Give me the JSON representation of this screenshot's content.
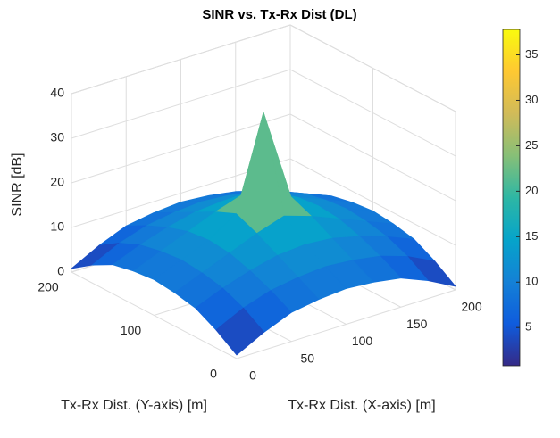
{
  "chart_data": {
    "type": "surface",
    "title": "SINR vs. Tx-Rx Dist (DL)",
    "xlabel": "Tx-Rx Dist. (X-axis) [m]",
    "ylabel": "Tx-Rx Dist. (Y-axis) [m]",
    "zlabel": "SINR [dB]",
    "x": [
      0,
      25,
      50,
      75,
      100,
      125,
      150,
      175,
      200
    ],
    "y": [
      0,
      25,
      50,
      75,
      100,
      125,
      150,
      175,
      200
    ],
    "z": [
      [
        0.8,
        4,
        6.5,
        7.5,
        8,
        7.5,
        6.5,
        4,
        0.8
      ],
      [
        4,
        7,
        9,
        10,
        10.5,
        10,
        9,
        7,
        4
      ],
      [
        6.5,
        9,
        11,
        12.5,
        13,
        12.5,
        11,
        9,
        6.5
      ],
      [
        7.5,
        10,
        12.5,
        15,
        17,
        15,
        12.5,
        10,
        7.5
      ],
      [
        8,
        10.5,
        13,
        17,
        37.8,
        17,
        13,
        10.5,
        8
      ],
      [
        7.5,
        10,
        12.5,
        15,
        17,
        15,
        12.5,
        10,
        7.5
      ],
      [
        6.5,
        9,
        11,
        12.5,
        13,
        12.5,
        11,
        9,
        6.5
      ],
      [
        4,
        7,
        9,
        10,
        10.5,
        10,
        9,
        7,
        4
      ],
      [
        0.8,
        4,
        6.5,
        7.5,
        8,
        7.5,
        6.5,
        4,
        0.8
      ]
    ],
    "xlim": [
      0,
      200
    ],
    "xticks": [
      0,
      50,
      100,
      150,
      200
    ],
    "ylim": [
      0,
      200
    ],
    "yticks": [
      0,
      100,
      200
    ],
    "zlim": [
      0,
      40
    ],
    "zticks": [
      0,
      10,
      20,
      30,
      40
    ],
    "clim": [
      0.8,
      37.8
    ],
    "cticks": [
      5,
      10,
      15,
      20,
      25,
      30,
      35
    ],
    "colormap": [
      "#352a87",
      "#0f5cdd",
      "#1481d6",
      "#06a4ca",
      "#2eb7a4",
      "#87bf77",
      "#d1bb59",
      "#fec832",
      "#f9fb0e"
    ],
    "grid": true,
    "colorbar": true
  }
}
